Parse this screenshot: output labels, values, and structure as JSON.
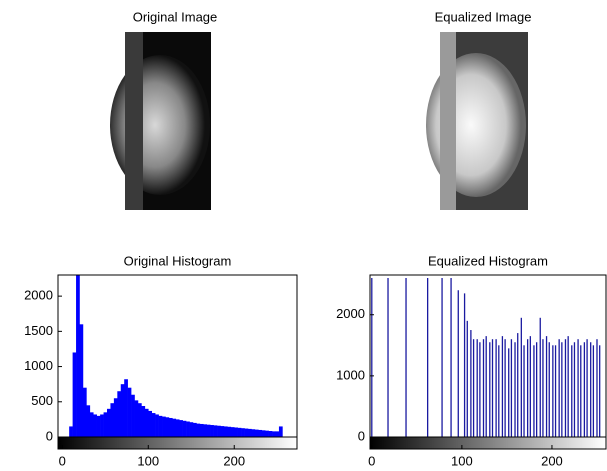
{
  "images": [
    {
      "title": "Original Image"
    },
    {
      "title": "Equalized Image"
    }
  ],
  "chart_data": [
    {
      "type": "histogram",
      "title": "Original Histogram",
      "color": "#0000ff",
      "bins": [
        0,
        4,
        8,
        12,
        16,
        20,
        24,
        28,
        32,
        36,
        40,
        44,
        48,
        52,
        56,
        60,
        64,
        68,
        72,
        76,
        80,
        84,
        88,
        92,
        96,
        100,
        104,
        108,
        112,
        116,
        120,
        124,
        128,
        132,
        136,
        140,
        144,
        148,
        152,
        156,
        160,
        164,
        168,
        172,
        176,
        180,
        184,
        188,
        192,
        196,
        200,
        204,
        208,
        212,
        216,
        220,
        224,
        228,
        232,
        236,
        240,
        244,
        248,
        252,
        256
      ],
      "values": [
        0,
        0,
        150,
        1200,
        2300,
        1600,
        700,
        450,
        350,
        320,
        300,
        320,
        350,
        400,
        480,
        550,
        650,
        750,
        820,
        700,
        600,
        520,
        480,
        440,
        400,
        370,
        340,
        320,
        300,
        290,
        280,
        270,
        260,
        250,
        240,
        230,
        220,
        210,
        200,
        190,
        185,
        180,
        175,
        170,
        165,
        160,
        155,
        150,
        145,
        140,
        135,
        130,
        125,
        120,
        115,
        110,
        105,
        100,
        95,
        90,
        85,
        80,
        80,
        150
      ],
      "xlim": [
        -5,
        273
      ],
      "xticks": [
        0,
        100,
        200
      ],
      "ylim": [
        0,
        2300
      ],
      "yticks": [
        0,
        500,
        1000,
        1500,
        2000
      ]
    },
    {
      "type": "stem",
      "title": "Equalized Histogram",
      "color": "#1a1aa0",
      "x": [
        0,
        18,
        38,
        62,
        78,
        88,
        96,
        103,
        106,
        110,
        113,
        117,
        120,
        124,
        127,
        131,
        134,
        138,
        141,
        145,
        148,
        152,
        155,
        159,
        162,
        166,
        169,
        173,
        176,
        180,
        183,
        187,
        190,
        194,
        197,
        201,
        204,
        208,
        211,
        215,
        218,
        222,
        225,
        229,
        232,
        236,
        239,
        243,
        246,
        250,
        253
      ],
      "values": [
        2600,
        2600,
        2600,
        2600,
        2600,
        2600,
        2400,
        2350,
        1900,
        1750,
        1600,
        1600,
        1550,
        1600,
        1650,
        1550,
        1600,
        1600,
        1500,
        1650,
        1600,
        1450,
        1600,
        1550,
        1700,
        1950,
        1500,
        1600,
        1650,
        1500,
        1550,
        1950,
        1600,
        1650,
        1550,
        1500,
        1500,
        1600,
        1550,
        1600,
        1650,
        1500,
        1550,
        1600,
        1500,
        1550,
        1600,
        1550,
        1500,
        1600,
        1500
      ],
      "xlim": [
        -2,
        260
      ],
      "xticks": [
        0,
        100,
        200
      ],
      "ylim": [
        0,
        2650
      ],
      "yticks": [
        0,
        1000,
        2000
      ]
    }
  ]
}
